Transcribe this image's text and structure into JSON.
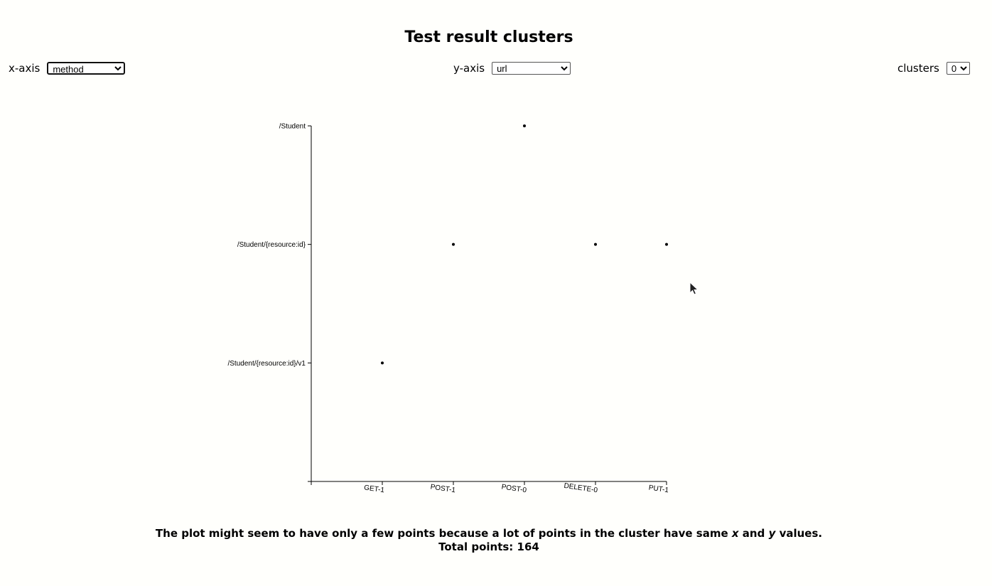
{
  "header": {
    "title": "Test result clusters"
  },
  "controls": {
    "x_axis": {
      "label": "x-axis",
      "selected": "method"
    },
    "y_axis": {
      "label": "y-axis",
      "selected": "url"
    },
    "clusters": {
      "label": "clusters",
      "selected": "0"
    }
  },
  "chart_data": {
    "type": "scatter",
    "x_categories": [
      "GET-1",
      "POST-1",
      "POST-0",
      "DELETE-0",
      "PUT-1"
    ],
    "y_categories": [
      "/Student/{resource:id}/v1",
      "/Student/{resource:id}",
      "/Student"
    ],
    "points": [
      {
        "x": "GET-1",
        "y": "/Student/{resource:id}/v1"
      },
      {
        "x": "POST-1",
        "y": "/Student/{resource:id}"
      },
      {
        "x": "POST-0",
        "y": "/Student"
      },
      {
        "x": "DELETE-0",
        "y": "/Student/{resource:id}"
      },
      {
        "x": "PUT-1",
        "y": "/Student/{resource:id}"
      }
    ],
    "xlabel": "",
    "ylabel": "",
    "grid": false,
    "legend": "none"
  },
  "footer": {
    "note_part1": "The plot might seem to have only a few points because a lot of points in the cluster have same ",
    "x_symbol": "x",
    "note_part2": " and ",
    "y_symbol": "y",
    "note_part3": " values.",
    "total_label": "Total points: 164"
  }
}
